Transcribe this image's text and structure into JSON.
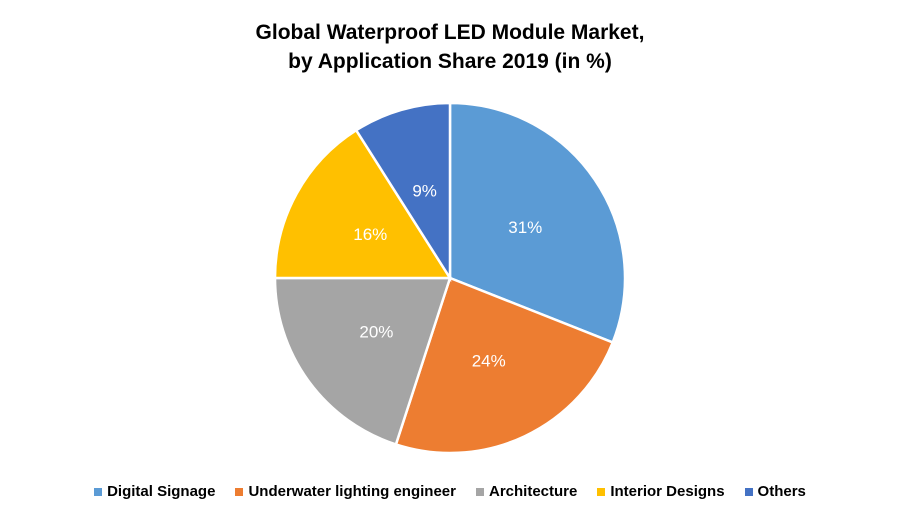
{
  "chart_data": {
    "type": "pie",
    "title_line1": "Global Waterproof LED Module Market,",
    "title_line2": "by Application Share 2019 (in %)",
    "legend_position": "bottom",
    "start_angle": "top, clockwise",
    "slices": [
      {
        "name": "Digital Signage",
        "value": 31,
        "label": "31%",
        "color": "#5B9BD5"
      },
      {
        "name": "Underwater lighting engineer",
        "value": 24,
        "label": "24%",
        "color": "#ED7D31"
      },
      {
        "name": "Architecture",
        "value": 20,
        "label": "20%",
        "color": "#A5A5A5"
      },
      {
        "name": "Interior Designs",
        "value": 16,
        "label": "16%",
        "color": "#FFC000"
      },
      {
        "name": "Others",
        "value": 9,
        "label": "9%",
        "color": "#4472C4"
      }
    ]
  }
}
